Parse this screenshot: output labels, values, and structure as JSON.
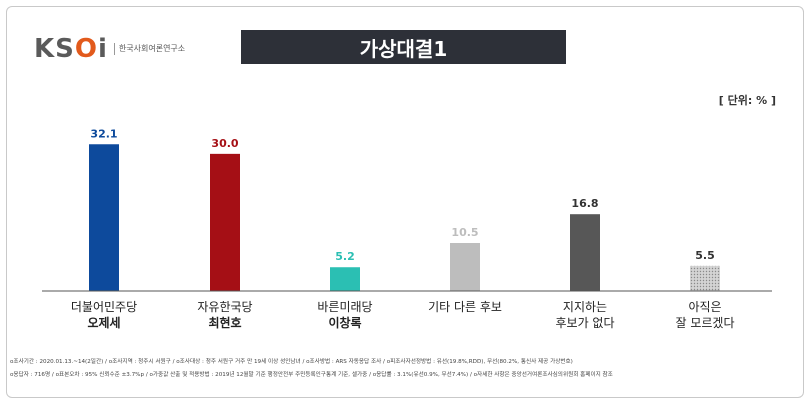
{
  "logo": {
    "mark_main": "KS",
    "mark_o": "O",
    "mark_end": "i",
    "subtitle": "한국사회여론연구소"
  },
  "title": "가상대결1",
  "unit": "[ 단위: % ]",
  "chart_data": {
    "type": "bar",
    "categories": [
      {
        "line1": "더불어민주당",
        "line2": "오제세"
      },
      {
        "line1": "자유한국당",
        "line2": "최현호"
      },
      {
        "line1": "바른미래당",
        "line2": "이창록"
      },
      {
        "line1": "기타 다른 후보",
        "line2": ""
      },
      {
        "line1": "지지하는",
        "line2": "후보가 없다"
      },
      {
        "line1": "아직은",
        "line2": "잘 모르겠다"
      }
    ],
    "values": [
      32.1,
      30.0,
      5.2,
      10.5,
      16.8,
      5.5
    ],
    "value_labels": [
      "32.1",
      "30.0",
      "5.2",
      "10.5",
      "16.8",
      "5.5"
    ],
    "colors": [
      "#0d4a9c",
      "#a50f15",
      "#2bbfb3",
      "#bdbdbd",
      "#575757",
      "#d9d9d9"
    ],
    "label_colors": [
      "#0d4a9c",
      "#a50f15",
      "#2bbfb3",
      "#bdbdbd",
      "#333333",
      "#333333"
    ],
    "bold_line2": [
      true,
      true,
      true,
      false,
      false,
      false
    ],
    "ylim": [
      0,
      35
    ]
  },
  "footnotes": [
    "o조사기간 : 2020.01.13.~14(2일간) / o조사지역 : 청주시 서원구 / o조사대상 : 청주 서원구 거주 만 19세 이상 성인남녀 / o조사방법 : ARS 자동응답 조사 / o피조사자선정방법 : 유선(19.8%,RDD), 무선(80.2%, 통신사 제공 가상번호)",
    "o응답자 : 716명 / o표본오차 : 95% 신뢰수준 ±3.7%p / o가중값 산출 및 적용방법 : 2019년 12월말 기준 행정안전부 주민등록인구통계 기준, 셀가중 / o응답률 : 3.1%(유선0.9%, 무선7.4%) / o자세한 사항은 중앙선거여론조사심의위원회 홈페이지 참조"
  ]
}
